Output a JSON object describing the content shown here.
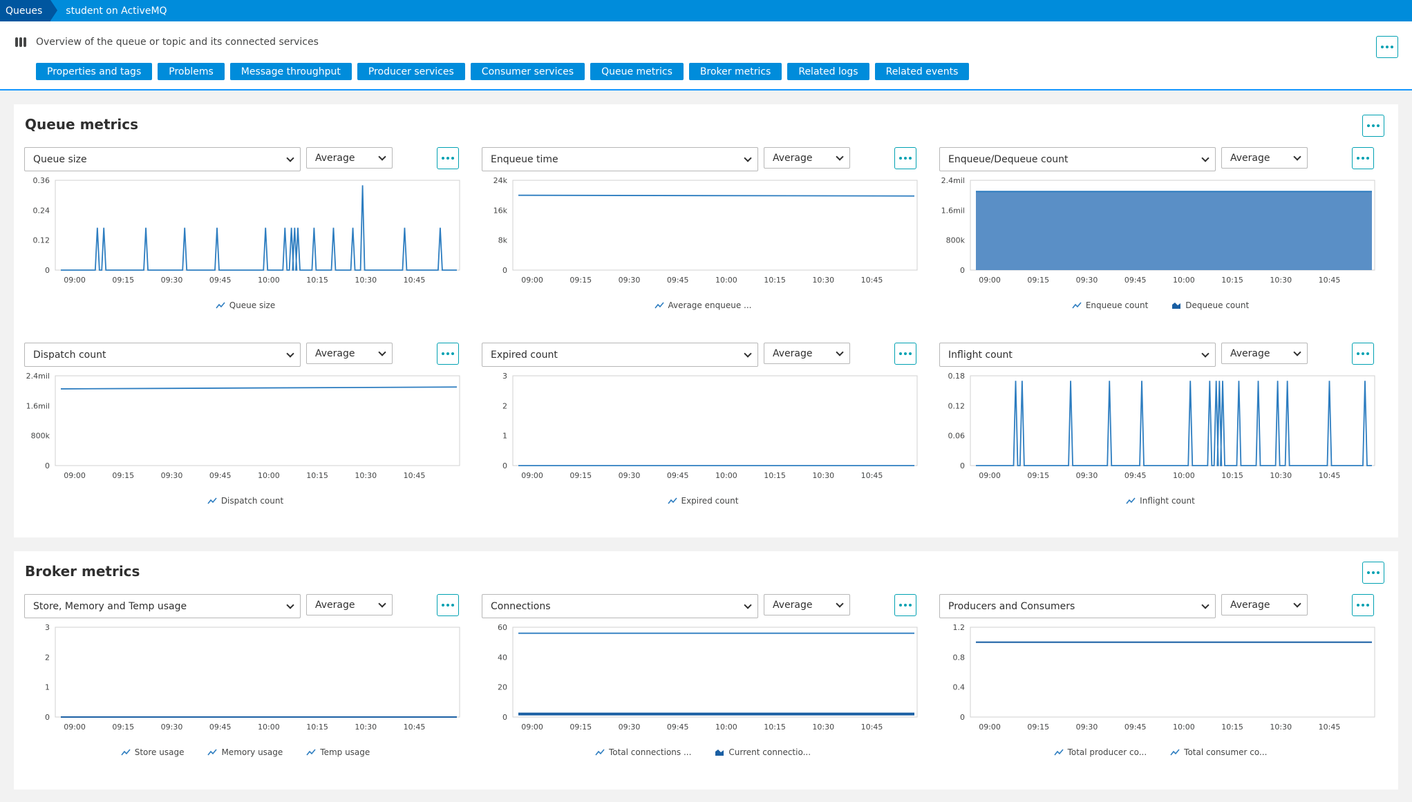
{
  "breadcrumb": {
    "root": "Queues",
    "current": "student on ActiveMQ"
  },
  "overview": {
    "text": "Overview of the queue or topic and its connected services",
    "nav": [
      "Properties and tags",
      "Problems",
      "Message throughput",
      "Producer services",
      "Consumer services",
      "Queue metrics",
      "Broker metrics",
      "Related logs",
      "Related events"
    ]
  },
  "colors": {
    "accent": "#008cdb",
    "dark_accent": "#00569f",
    "line": "#2d7dc0",
    "area": "#5a8fc6",
    "teal": "#00a1b2"
  },
  "icons": {
    "overview": "service-bars-icon",
    "more": "more-dots-icon",
    "dropdown": "chevron-down-icon",
    "line_legend": "line-chart-icon",
    "area_legend": "area-chart-icon"
  },
  "time_ticks": [
    "09:00",
    "09:15",
    "09:30",
    "09:45",
    "10:00",
    "10:15",
    "10:30",
    "10:45"
  ],
  "queue_panel": {
    "title": "Queue metrics",
    "tiles": [
      {
        "metric": "Queue size",
        "aggregation": "Average",
        "yticks": [
          "0.36",
          "0.24",
          "0.12",
          "0"
        ],
        "legend": [
          {
            "label": "Queue size",
            "kind": "line"
          }
        ]
      },
      {
        "metric": "Enqueue time",
        "aggregation": "Average",
        "yticks": [
          "24k",
          "16k",
          "8k",
          "0"
        ],
        "legend": [
          {
            "label": "Average enqueue ...",
            "kind": "line"
          }
        ]
      },
      {
        "metric": "Enqueue/Dequeue count",
        "aggregation": "Average",
        "yticks": [
          "2.4mil",
          "1.6mil",
          "800k",
          "0"
        ],
        "legend": [
          {
            "label": "Enqueue count",
            "kind": "line"
          },
          {
            "label": "Dequeue count",
            "kind": "area"
          }
        ]
      },
      {
        "metric": "Dispatch count",
        "aggregation": "Average",
        "yticks": [
          "2.4mil",
          "1.6mil",
          "800k",
          "0"
        ],
        "legend": [
          {
            "label": "Dispatch count",
            "kind": "line"
          }
        ]
      },
      {
        "metric": "Expired count",
        "aggregation": "Average",
        "yticks": [
          "3",
          "2",
          "1",
          "0"
        ],
        "legend": [
          {
            "label": "Expired count",
            "kind": "line"
          }
        ]
      },
      {
        "metric": "Inflight count",
        "aggregation": "Average",
        "yticks": [
          "0.18",
          "0.12",
          "0.06",
          "0"
        ],
        "legend": [
          {
            "label": "Inflight count",
            "kind": "line"
          }
        ]
      }
    ]
  },
  "broker_panel": {
    "title": "Broker metrics",
    "tiles": [
      {
        "metric": "Store, Memory and Temp usage",
        "aggregation": "Average",
        "yticks": [
          "3",
          "2",
          "1",
          "0"
        ],
        "legend": [
          {
            "label": "Store usage",
            "kind": "line"
          },
          {
            "label": "Memory usage",
            "kind": "line"
          },
          {
            "label": "Temp usage",
            "kind": "line"
          }
        ]
      },
      {
        "metric": "Connections",
        "aggregation": "Average",
        "yticks": [
          "60",
          "40",
          "20",
          "0"
        ],
        "legend": [
          {
            "label": "Total connections ...",
            "kind": "line"
          },
          {
            "label": "Current connectio...",
            "kind": "area"
          }
        ]
      },
      {
        "metric": "Producers and Consumers",
        "aggregation": "Average",
        "yticks": [
          "1.2",
          "0.8",
          "0.4",
          "0"
        ],
        "legend": [
          {
            "label": "Total producer co...",
            "kind": "line"
          },
          {
            "label": "Total consumer co...",
            "kind": "line"
          }
        ]
      }
    ]
  },
  "chart_data": [
    {
      "type": "line",
      "title": "Queue size",
      "ylim": [
        0,
        0.36
      ],
      "spikes_at": [
        "09:07",
        "09:09",
        "09:22",
        "09:34",
        "09:44",
        "09:59",
        "10:05",
        "10:07",
        "10:08",
        "10:09",
        "10:14",
        "10:20",
        "10:26",
        "10:29",
        "10:42",
        "10:53"
      ],
      "spike_value": 0.17,
      "max_spike": {
        "time": "10:29",
        "value": 0.34
      },
      "series": [
        {
          "name": "Queue size"
        }
      ]
    },
    {
      "type": "line",
      "title": "Enqueue time",
      "ylim": [
        0,
        24000
      ],
      "series": [
        {
          "name": "Average enqueue ...",
          "start": 20000,
          "end": 19800
        }
      ]
    },
    {
      "type": "area",
      "title": "Enqueue/Dequeue count",
      "ylim": [
        0,
        2400000
      ],
      "series": [
        {
          "name": "Enqueue count",
          "value": 2100000
        },
        {
          "name": "Dequeue count",
          "value": 2100000
        }
      ]
    },
    {
      "type": "line",
      "title": "Dispatch count",
      "ylim": [
        0,
        2400000
      ],
      "series": [
        {
          "name": "Dispatch count",
          "start": 2050000,
          "end": 2100000
        }
      ]
    },
    {
      "type": "line",
      "title": "Expired count",
      "ylim": [
        0,
        3
      ],
      "series": [
        {
          "name": "Expired count",
          "value": 0
        }
      ]
    },
    {
      "type": "line",
      "title": "Inflight count",
      "ylim": [
        0,
        0.18
      ],
      "spikes_at": [
        "09:08",
        "09:10",
        "09:25",
        "09:37",
        "09:47",
        "10:02",
        "10:08",
        "10:10",
        "10:11",
        "10:12",
        "10:17",
        "10:23",
        "10:29",
        "10:32",
        "10:45",
        "10:56"
      ],
      "spike_value": 0.17,
      "series": [
        {
          "name": "Inflight count"
        }
      ]
    },
    {
      "type": "line",
      "title": "Store, Memory and Temp usage",
      "ylim": [
        0,
        3
      ],
      "series": [
        {
          "name": "Store usage",
          "value": 0
        },
        {
          "name": "Memory usage",
          "value": 0
        },
        {
          "name": "Temp usage",
          "value": 0
        }
      ]
    },
    {
      "type": "line",
      "title": "Connections",
      "ylim": [
        0,
        60
      ],
      "series": [
        {
          "name": "Total connections ...",
          "value": 56
        },
        {
          "name": "Current connectio...",
          "value": 2
        }
      ]
    },
    {
      "type": "line",
      "title": "Producers and Consumers",
      "ylim": [
        0,
        1.2
      ],
      "series": [
        {
          "name": "Total producer co...",
          "value": 1
        },
        {
          "name": "Total consumer co...",
          "value": 1
        }
      ]
    }
  ]
}
